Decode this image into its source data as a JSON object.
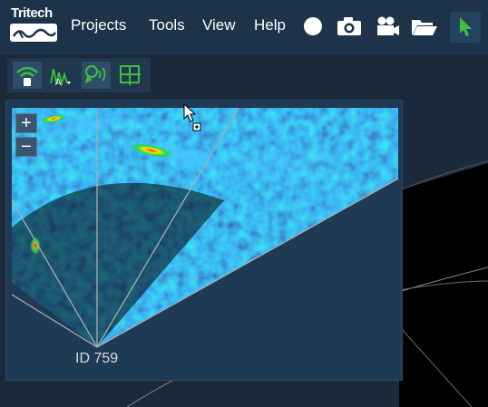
{
  "app": {
    "logo_text": "Tritech"
  },
  "menu": {
    "items": [
      {
        "label": "Projects"
      },
      {
        "label": "Tools"
      },
      {
        "label": "View"
      },
      {
        "label": "Help"
      }
    ]
  },
  "toolbar": {
    "icons": [
      "record-circle-icon",
      "camera-icon",
      "video-camera-icon",
      "folder-open-icon",
      "pointer-arrow-icon"
    ],
    "active_color": "#3fbf3f"
  },
  "subtoolbar": {
    "icons": [
      "wifi-signal-icon",
      "amplitude-wave-icon",
      "sonar-ping-icon",
      "grid-layout-icon"
    ],
    "icon_letter": "A"
  },
  "sonar": {
    "zoom_in_label": "+",
    "zoom_out_label": "−",
    "id_label": "ID 759"
  },
  "colors": {
    "menubar": "#1c3349",
    "accent_green": "#3fbf3f",
    "panel": "#1e3a54"
  }
}
